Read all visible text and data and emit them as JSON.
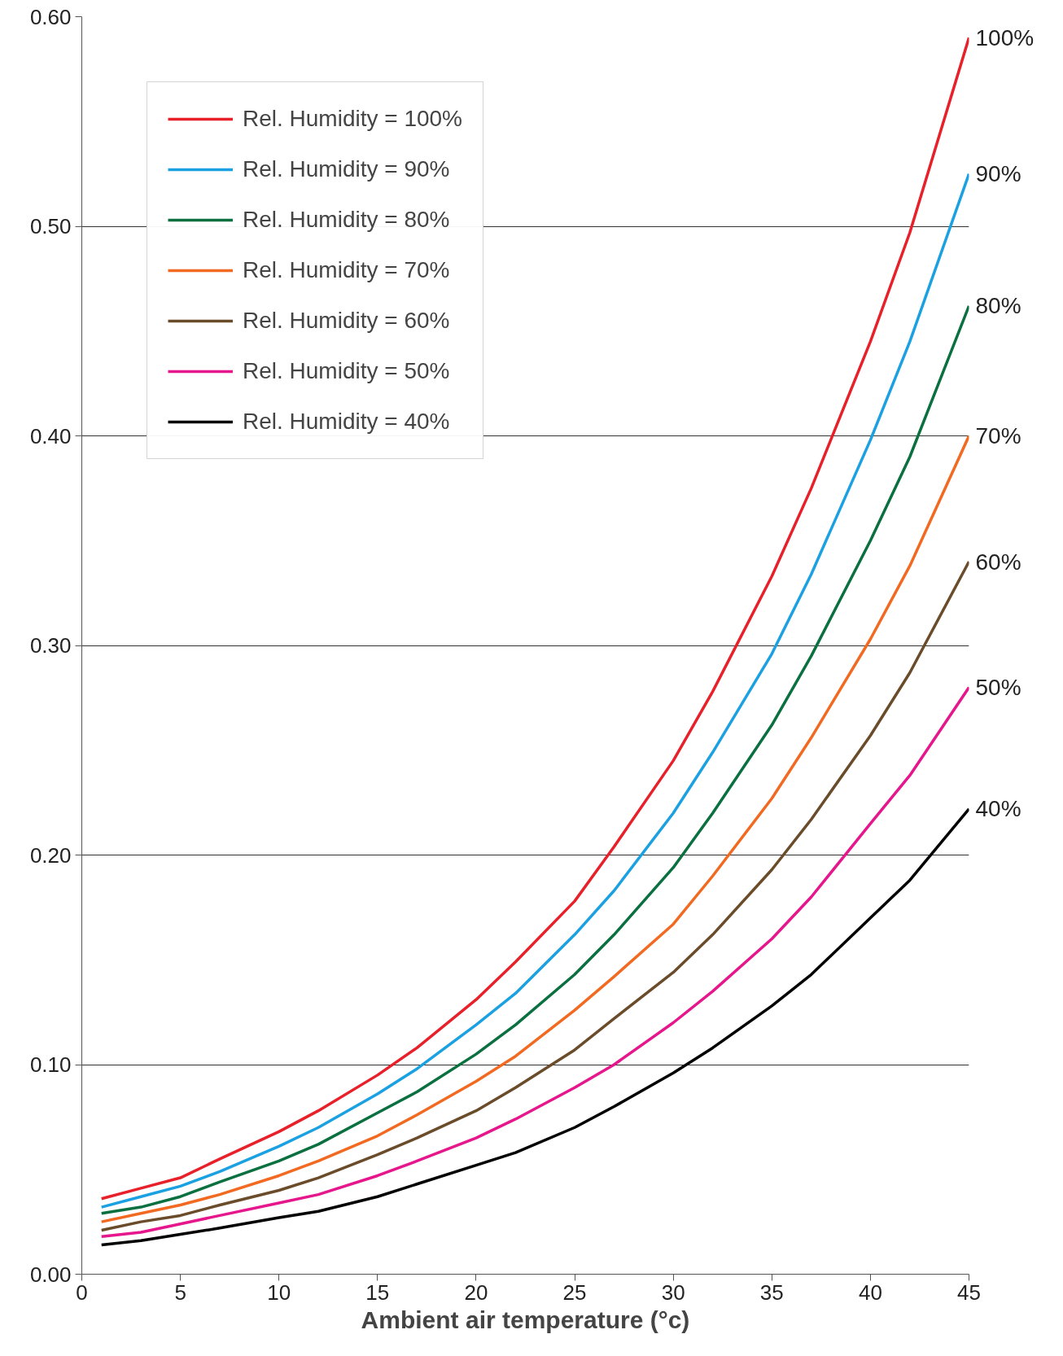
{
  "chart_data": {
    "type": "line",
    "xlabel": "Ambient air temperature (°c)",
    "x": [
      1,
      3,
      5,
      7,
      10,
      12,
      15,
      17,
      20,
      22,
      25,
      27,
      30,
      32,
      35,
      37,
      40,
      42,
      45
    ],
    "xlim": [
      0,
      45
    ],
    "xticks": [
      0,
      5,
      10,
      15,
      20,
      25,
      30,
      35,
      40,
      45
    ],
    "ylim": [
      0,
      0.6
    ],
    "yticks": [
      {
        "value": 0,
        "label": "0.00"
      },
      {
        "value": 0.1,
        "label": "0.10"
      },
      {
        "value": 0.2,
        "label": "0.20"
      },
      {
        "value": 0.3,
        "label": "0.30"
      },
      {
        "value": 0.4,
        "label": "0.40"
      },
      {
        "value": 0.5,
        "label": "0.50"
      },
      {
        "value": 0.6,
        "label": "0.60"
      }
    ],
    "grid": "y",
    "legend": "top left",
    "marker": "none",
    "line_style": "solid",
    "series": [
      {
        "name": "Rel. Humidity = 100%",
        "color": "#e8202a",
        "values": [
          0.036,
          0.041,
          0.046,
          0.055,
          0.068,
          0.078,
          0.095,
          0.108,
          0.131,
          0.149,
          0.178,
          0.204,
          0.245,
          0.278,
          0.333,
          0.375,
          0.445,
          0.497,
          0.59
        ]
      },
      {
        "name": "Rel. Humidity = 90%",
        "color": "#1ba1e2",
        "values": [
          0.032,
          0.037,
          0.042,
          0.049,
          0.061,
          0.07,
          0.086,
          0.098,
          0.119,
          0.134,
          0.162,
          0.183,
          0.22,
          0.249,
          0.296,
          0.334,
          0.398,
          0.445,
          0.525
        ]
      },
      {
        "name": "Rel. Humidity = 80%",
        "color": "#0a7040",
        "values": [
          0.029,
          0.032,
          0.037,
          0.044,
          0.054,
          0.062,
          0.077,
          0.087,
          0.105,
          0.119,
          0.143,
          0.162,
          0.194,
          0.22,
          0.262,
          0.295,
          0.35,
          0.39,
          0.462
        ]
      },
      {
        "name": "Rel. Humidity = 70%",
        "color": "#f26a21",
        "values": [
          0.025,
          0.029,
          0.033,
          0.038,
          0.047,
          0.054,
          0.066,
          0.076,
          0.092,
          0.104,
          0.126,
          0.142,
          0.167,
          0.19,
          0.227,
          0.256,
          0.303,
          0.338,
          0.4
        ]
      },
      {
        "name": "Rel. Humidity = 60%",
        "color": "#6b4c2a",
        "values": [
          0.021,
          0.025,
          0.028,
          0.033,
          0.04,
          0.046,
          0.057,
          0.065,
          0.078,
          0.089,
          0.107,
          0.122,
          0.144,
          0.162,
          0.193,
          0.217,
          0.257,
          0.287,
          0.34
        ]
      },
      {
        "name": "Rel. Humidity = 50%",
        "color": "#e6168c",
        "values": [
          0.018,
          0.02,
          0.024,
          0.028,
          0.034,
          0.038,
          0.047,
          0.054,
          0.065,
          0.074,
          0.089,
          0.1,
          0.12,
          0.135,
          0.16,
          0.18,
          0.215,
          0.238,
          0.28
        ]
      },
      {
        "name": "Rel. Humidity = 40%",
        "color": "#000000",
        "values": [
          0.014,
          0.016,
          0.019,
          0.022,
          0.027,
          0.03,
          0.037,
          0.043,
          0.052,
          0.058,
          0.07,
          0.08,
          0.096,
          0.108,
          0.128,
          0.143,
          0.17,
          0.188,
          0.222
        ]
      }
    ],
    "annotations": [
      "100%",
      "90%",
      "80%",
      "70%",
      "60%",
      "50%",
      "40%"
    ]
  }
}
